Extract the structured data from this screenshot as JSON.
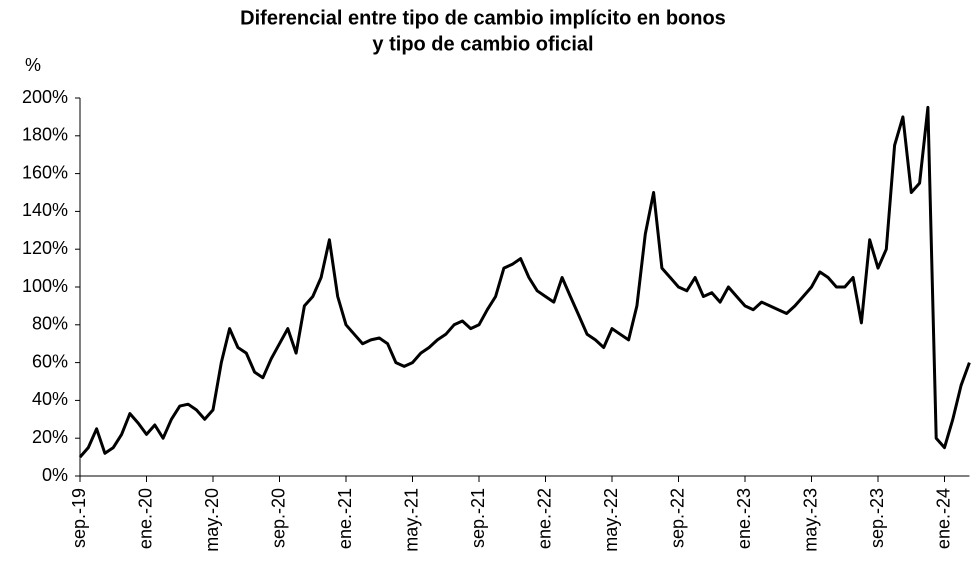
{
  "chart_data": {
    "type": "line",
    "title": [
      "Diferencial entre tipo de cambio implícito en bonos",
      "y tipo de cambio oficial"
    ],
    "y_label": "%",
    "color": "#000000",
    "categories": [
      "sep.-19",
      null,
      null,
      null,
      null,
      null,
      null,
      null,
      "ene.-20",
      null,
      null,
      null,
      null,
      null,
      null,
      null,
      "may.-20",
      null,
      null,
      null,
      null,
      null,
      null,
      null,
      "sep.-20",
      null,
      null,
      null,
      null,
      null,
      null,
      null,
      "ene.-21",
      null,
      null,
      null,
      null,
      null,
      null,
      null,
      "may.-21",
      null,
      null,
      null,
      null,
      null,
      null,
      null,
      "sep.-21",
      null,
      null,
      null,
      null,
      null,
      null,
      null,
      "ene.-22",
      null,
      null,
      null,
      null,
      null,
      null,
      null,
      "may.-22",
      null,
      null,
      null,
      null,
      null,
      null,
      null,
      "sep.-22",
      null,
      null,
      null,
      null,
      null,
      null,
      null,
      "ene.-23",
      null,
      null,
      null,
      null,
      null,
      null,
      null,
      "may.-23",
      null,
      null,
      null,
      null,
      null,
      null,
      null,
      "sep.-23",
      null,
      null,
      null,
      null,
      null,
      null,
      null,
      "ene.-24",
      null,
      null,
      null
    ],
    "values": [
      10,
      15,
      25,
      12,
      15,
      22,
      33,
      28,
      22,
      27,
      20,
      30,
      37,
      38,
      35,
      30,
      35,
      60,
      78,
      68,
      65,
      55,
      52,
      62,
      70,
      78,
      65,
      90,
      95,
      105,
      125,
      95,
      80,
      75,
      70,
      72,
      73,
      70,
      60,
      58,
      60,
      65,
      68,
      72,
      75,
      80,
      82,
      78,
      80,
      88,
      95,
      110,
      112,
      115,
      105,
      98,
      95,
      92,
      105,
      95,
      85,
      75,
      72,
      68,
      78,
      75,
      72,
      90,
      128,
      150,
      110,
      105,
      100,
      98,
      105,
      95,
      97,
      92,
      100,
      95,
      90,
      88,
      92,
      90,
      88,
      86,
      90,
      95,
      100,
      108,
      105,
      100,
      100,
      105,
      81,
      125,
      110,
      120,
      175,
      190,
      150,
      155,
      195,
      20,
      15,
      30,
      48,
      60
    ],
    "ylim": [
      0,
      200
    ],
    "yticks": [
      {
        "value": 0,
        "label": "0%"
      },
      {
        "value": 20,
        "label": "20%"
      },
      {
        "value": 40,
        "label": "40%"
      },
      {
        "value": 60,
        "label": "60%"
      },
      {
        "value": 80,
        "label": "80%"
      },
      {
        "value": 100,
        "label": "100%"
      },
      {
        "value": 120,
        "label": "120%"
      },
      {
        "value": 140,
        "label": "140%"
      },
      {
        "value": 160,
        "label": "160%"
      },
      {
        "value": 180,
        "label": "180%"
      },
      {
        "value": 200,
        "label": "200%"
      }
    ]
  }
}
